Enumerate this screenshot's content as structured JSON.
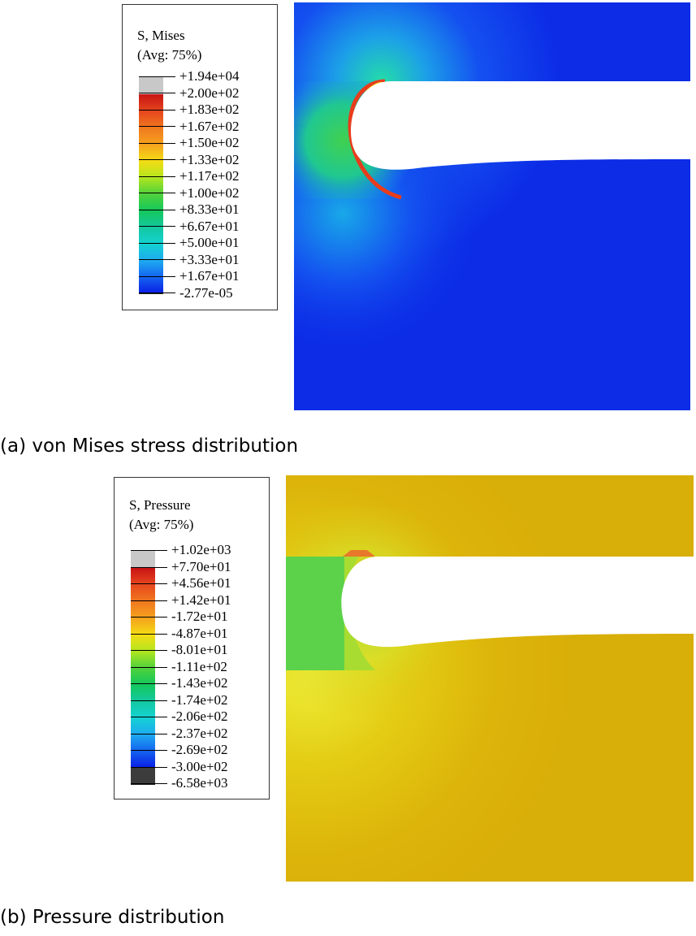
{
  "panel_a": {
    "legend_title_1": "S, Mises",
    "legend_title_2": "(Avg: 75%)",
    "labels": [
      "+1.94e+04",
      "+2.00e+02",
      "+1.83e+02",
      "+1.67e+02",
      "+1.50e+02",
      "+1.33e+02",
      "+1.17e+02",
      "+1.00e+02",
      "+8.33e+01",
      "+6.67e+01",
      "+5.00e+01",
      "+3.33e+01",
      "+1.67e+01",
      "-2.77e-05"
    ],
    "colors": [
      "#c8c8c8",
      "#c81414",
      "#e6461e",
      "#f0781e",
      "#f5a01e",
      "#f5dc14",
      "#b4e61e",
      "#50d23c",
      "#14c85a",
      "#14c8a0",
      "#14d2d2",
      "#1eaaf0",
      "#1464f0",
      "#0a1ee6"
    ],
    "caption": "(a) von Mises stress distribution"
  },
  "panel_b": {
    "legend_title_1": "S, Pressure",
    "legend_title_2": "(Avg: 75%)",
    "labels": [
      "+1.02e+03",
      "+7.70e+01",
      "+4.56e+01",
      "+1.42e+01",
      "-1.72e+01",
      "-4.87e+01",
      "-8.01e+01",
      "-1.11e+02",
      "-1.43e+02",
      "-1.74e+02",
      "-2.06e+02",
      "-2.37e+02",
      "-2.69e+02",
      "-3.00e+02",
      "-6.58e+03"
    ],
    "colors": [
      "#c8c8c8",
      "#c81414",
      "#e6461e",
      "#f0781e",
      "#f5a01e",
      "#f5dc14",
      "#b4e61e",
      "#50d23c",
      "#14c85a",
      "#14c8a0",
      "#14d2d2",
      "#1eaaf0",
      "#1464f0",
      "#0a1ee6",
      "#3c3c3c"
    ],
    "caption": "(b) Pressure distribution"
  }
}
